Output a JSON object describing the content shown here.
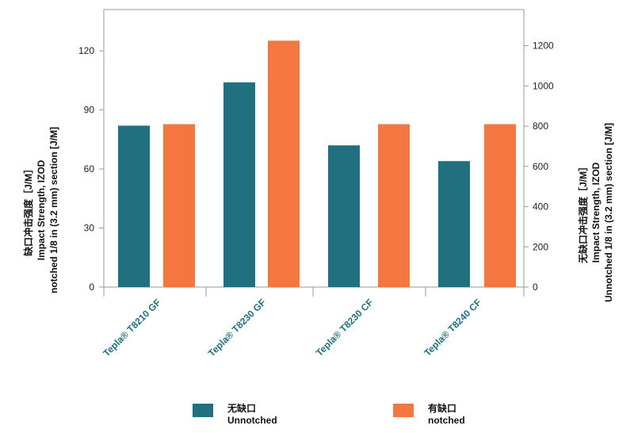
{
  "chart_data": {
    "type": "bar",
    "categories": [
      "Tepla® T8210 GF",
      "Tepla® T8230 GF",
      "Tepla® T8230 CF",
      "Tepla® T8240 CF"
    ],
    "series": [
      {
        "name": "无缺口\nUnnotched",
        "axis": "left",
        "color": "#21707f",
        "values": [
          82,
          104,
          72,
          64
        ]
      },
      {
        "name": "有缺口\nnotched",
        "axis": "right",
        "color": "#f47640",
        "values": [
          810,
          1225,
          810,
          810
        ]
      }
    ],
    "y_left": {
      "label": [
        "缺口冲击强度［J/M］",
        "Impact Strength, IZOD",
        "notched 1/8 in (3.2 mm) section [J/M]"
      ],
      "ticks": [
        0,
        30,
        60,
        90,
        120
      ],
      "ylim": [
        0,
        141
      ]
    },
    "y_right": {
      "label": [
        "无缺口冲击强度［J/M］",
        "Impact Strength, IZOD",
        "Unnotched 1/8 in (3.2 mm) section [J/M]"
      ],
      "ticks": [
        0,
        200,
        400,
        600,
        800,
        1000,
        1200
      ],
      "ylim": [
        0,
        1380
      ]
    },
    "grid": false,
    "legend_position": "bottom",
    "category_label_color": "#21707f"
  }
}
